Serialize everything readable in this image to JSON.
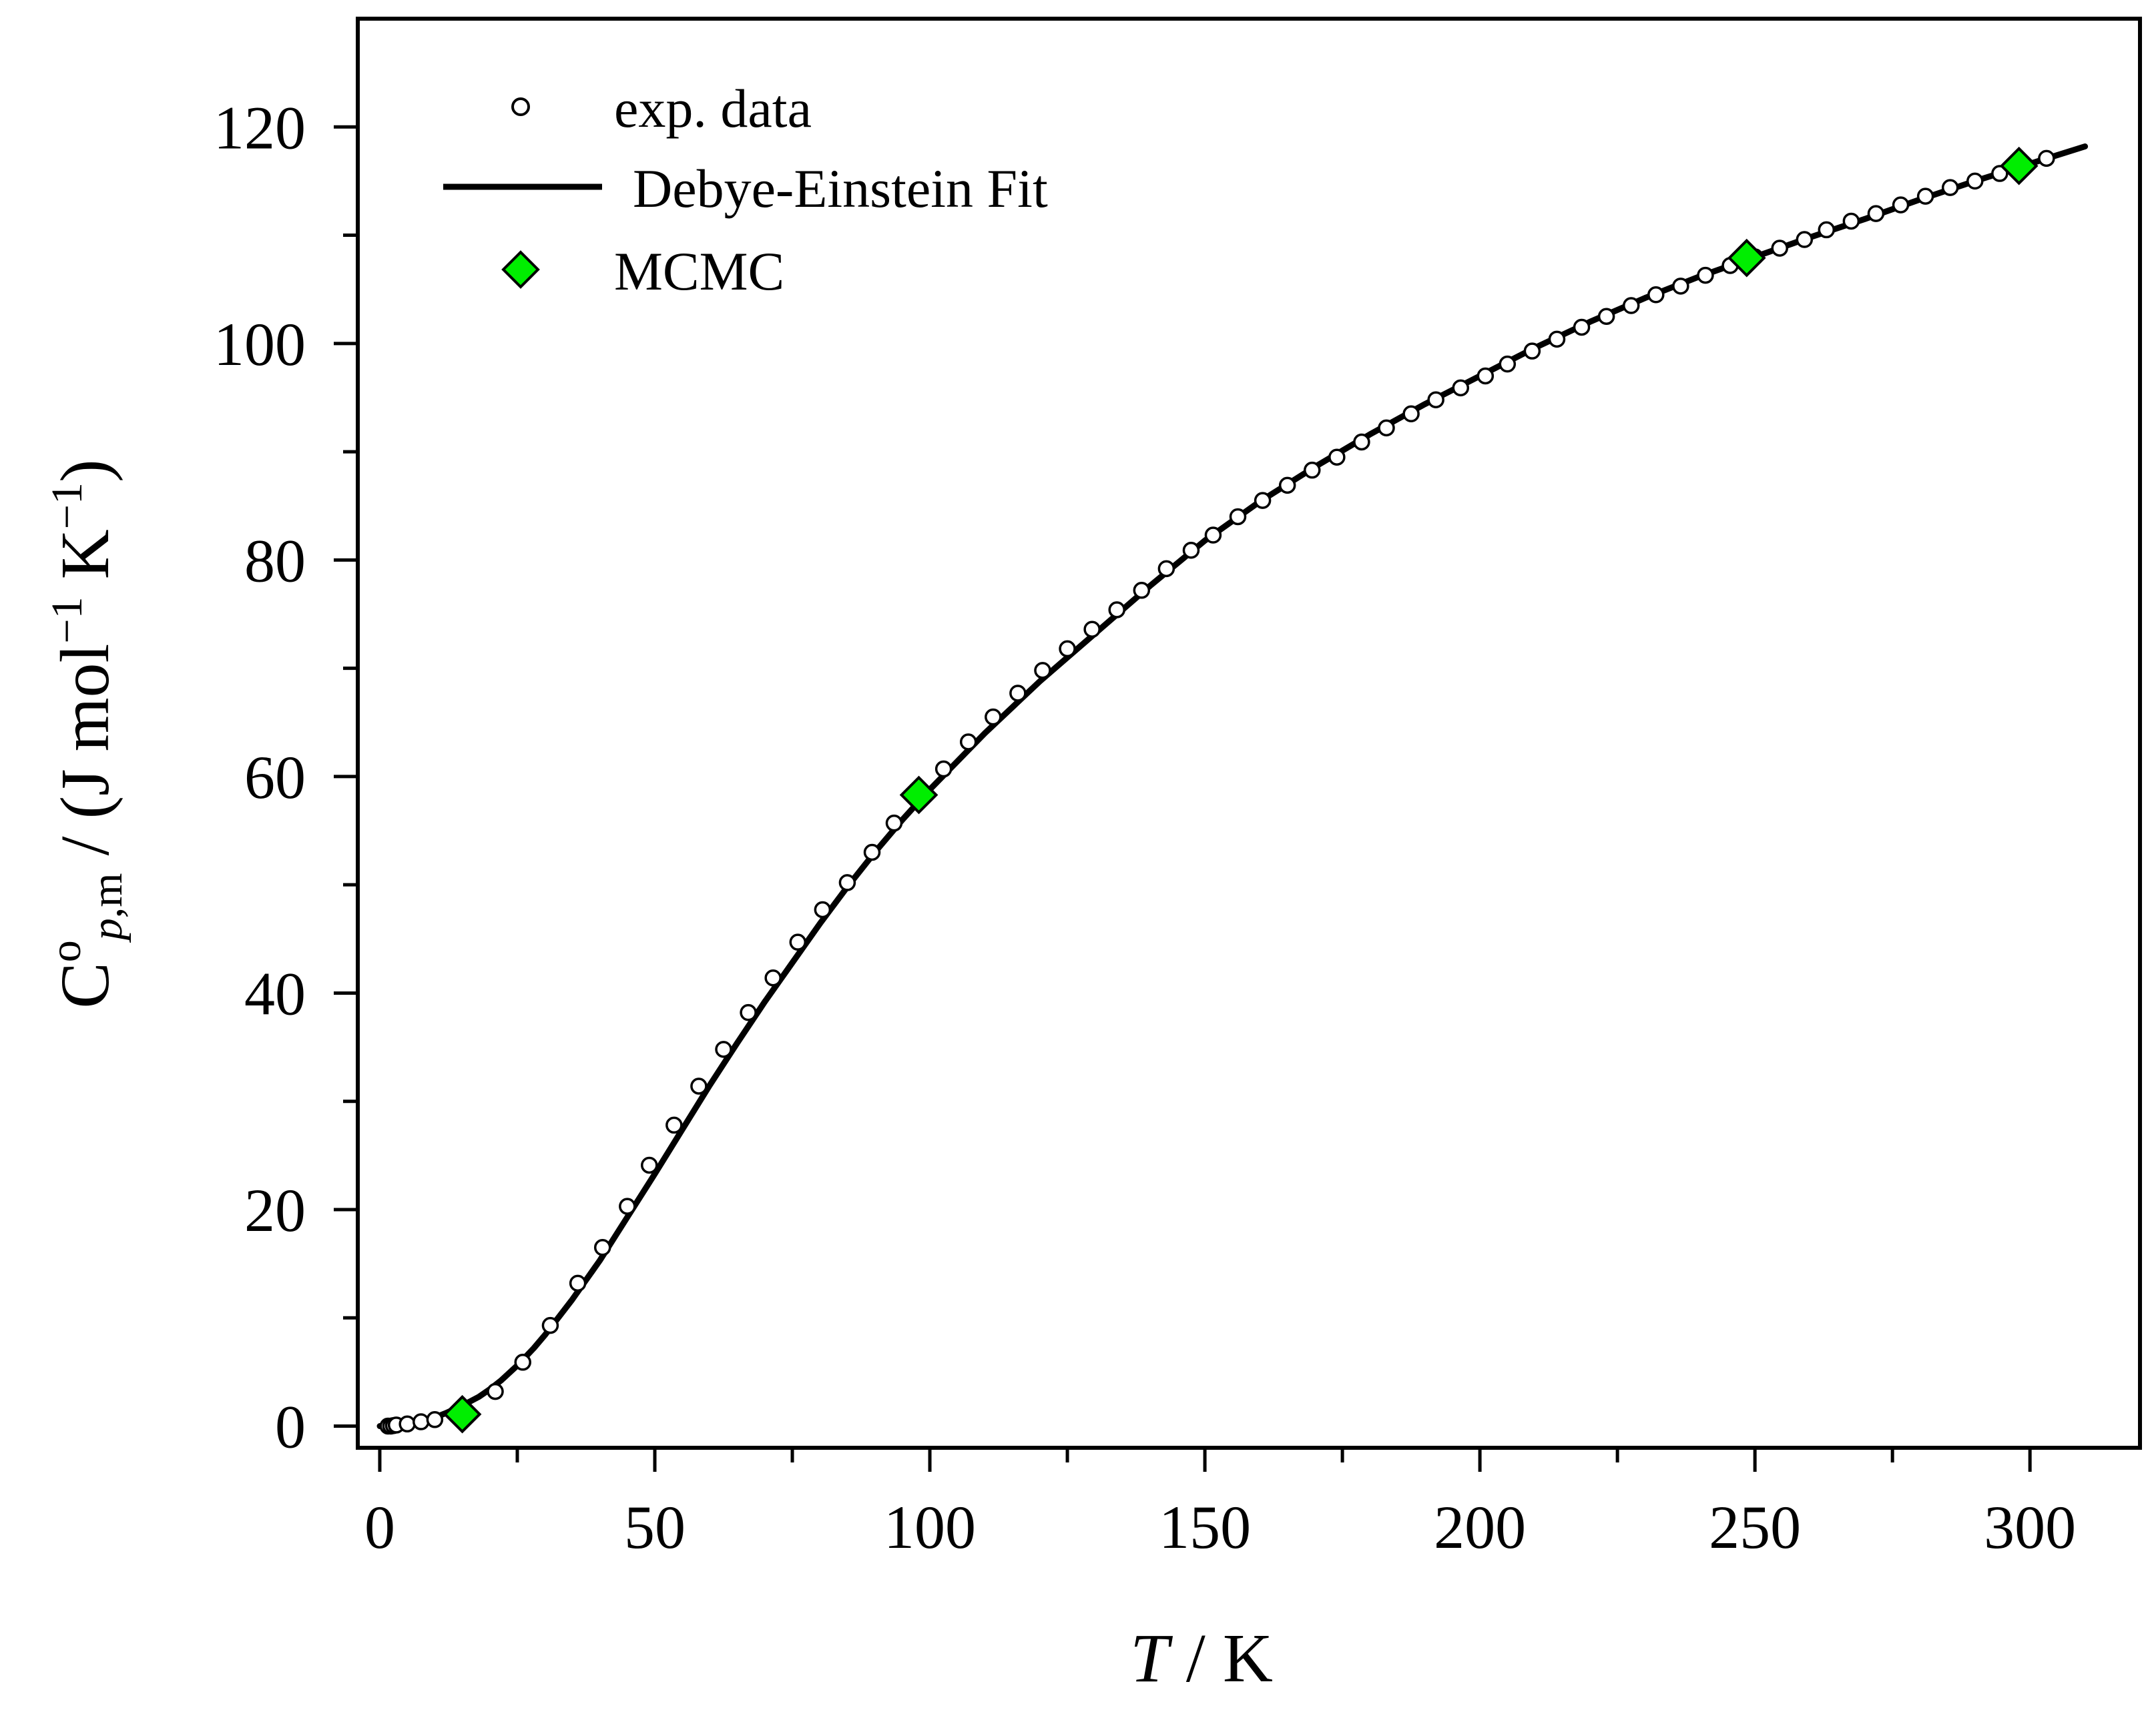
{
  "chart_data": {
    "type": "scatter",
    "title": "",
    "xlabel": {
      "var": "T",
      "sep": " / ",
      "unit": "K"
    },
    "ylabel": {
      "symbol": "C",
      "superscript": "o",
      "subscript_italic": "p",
      "subscript_rest": ",m",
      "sep": " / ",
      "unit_open": "(J mol",
      "unit_exp1": "−1",
      "unit_mid": " K",
      "unit_exp2": "−1",
      "unit_close": ")"
    },
    "xlim": [
      -4,
      320
    ],
    "ylim": [
      -2,
      130
    ],
    "xticks": [
      0,
      50,
      100,
      150,
      200,
      250,
      300
    ],
    "xtick_labels": [
      "0",
      "50",
      "100",
      "150",
      "200",
      "250",
      "300"
    ],
    "yticks": [
      0,
      20,
      40,
      60,
      80,
      100,
      120
    ],
    "ytick_labels": [
      "0",
      "20",
      "40",
      "60",
      "80",
      "100",
      "120"
    ],
    "grid": false,
    "legend_position": "top-left",
    "legend": [
      {
        "key": "exp",
        "label": "exp. data",
        "marker": "open-circle"
      },
      {
        "key": "fit",
        "label": "Debye-Einstein Fit",
        "marker": "line"
      },
      {
        "key": "mcmc",
        "label": "MCMC",
        "marker": "diamond"
      }
    ],
    "colors": {
      "axis": "#000000",
      "fit": "#000000",
      "exp": "#000000",
      "mcmc_fill": "#00ee00",
      "mcmc_edge": "#000000"
    },
    "series": [
      {
        "name": "exp. data",
        "x": [
          1.5,
          2.0,
          2.5,
          3.0,
          5.0,
          7.5,
          10.0,
          21.0,
          26.0,
          31.0,
          36.0,
          40.5,
          45.0,
          49.0,
          53.5,
          58.0,
          62.5,
          67.0,
          71.5,
          76.0,
          80.5,
          85.0,
          89.5,
          93.5,
          98.0,
          102.5,
          107.0,
          111.5,
          116.0,
          120.5,
          125.0,
          129.5,
          134.0,
          138.5,
          143.0,
          147.5,
          151.5,
          156.0,
          160.5,
          165.0,
          169.5,
          174.0,
          178.5,
          183.0,
          187.5,
          192.0,
          196.5,
          201.0,
          205.0,
          209.5,
          214.0,
          218.5,
          223.0,
          227.5,
          232.0,
          236.5,
          241.0,
          245.5,
          250.0,
          254.5,
          259.0,
          263.0,
          267.5,
          272.0,
          276.5,
          281.0,
          285.5,
          290.0,
          294.5,
          299.0,
          303.0
        ],
        "y": [
          0.0,
          0.0,
          0.05,
          0.1,
          0.2,
          0.4,
          0.6,
          3.2,
          5.9,
          9.3,
          13.2,
          16.5,
          20.3,
          24.1,
          27.8,
          31.4,
          34.8,
          38.2,
          41.4,
          44.7,
          47.7,
          50.2,
          53.0,
          55.7,
          58.2,
          60.7,
          63.2,
          65.5,
          67.7,
          69.8,
          71.8,
          73.6,
          75.4,
          77.2,
          79.2,
          80.9,
          82.3,
          84.0,
          85.5,
          86.9,
          88.3,
          89.5,
          90.9,
          92.2,
          93.5,
          94.8,
          95.9,
          97.0,
          98.1,
          99.3,
          100.4,
          101.5,
          102.5,
          103.5,
          104.5,
          105.3,
          106.3,
          107.2,
          108.0,
          108.8,
          109.6,
          110.5,
          111.3,
          112.0,
          112.8,
          113.6,
          114.4,
          115.0,
          115.7,
          116.4,
          117.1
        ]
      },
      {
        "name": "Debye-Einstein Fit",
        "x": [
          0,
          2,
          5,
          8,
          10,
          12,
          15,
          18,
          20,
          22,
          25,
          28,
          30,
          35,
          40,
          45,
          50,
          55,
          60,
          65,
          70,
          75,
          80,
          85,
          90,
          95,
          100,
          110,
          120,
          130,
          140,
          150,
          160,
          170,
          180,
          190,
          200,
          210,
          220,
          230,
          240,
          250,
          260,
          270,
          280,
          290,
          300,
          310
        ],
        "y": [
          0,
          0.02,
          0.15,
          0.5,
          0.8,
          1.2,
          1.9,
          2.7,
          3.4,
          4.2,
          5.6,
          7.2,
          8.4,
          11.7,
          15.3,
          19.3,
          23.3,
          27.4,
          31.5,
          35.4,
          39.2,
          42.8,
          46.4,
          49.8,
          53.0,
          56.0,
          58.8,
          64.0,
          68.8,
          73.2,
          77.6,
          81.8,
          85.4,
          88.6,
          91.6,
          94.4,
          97.0,
          99.6,
          102.0,
          104.2,
          106.2,
          108.0,
          109.8,
          111.5,
          113.3,
          115.0,
          116.6,
          118.2
        ]
      },
      {
        "name": "MCMC",
        "x": [
          15.0,
          98.0,
          248.5,
          298.0
        ],
        "y": [
          1.1,
          58.3,
          107.9,
          116.4
        ]
      }
    ]
  }
}
